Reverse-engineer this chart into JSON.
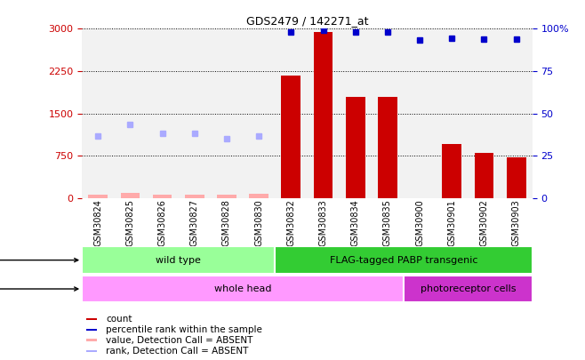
{
  "title": "GDS2479 / 142271_at",
  "samples": [
    "GSM30824",
    "GSM30825",
    "GSM30826",
    "GSM30827",
    "GSM30828",
    "GSM30830",
    "GSM30832",
    "GSM30833",
    "GSM30834",
    "GSM30835",
    "GSM30900",
    "GSM30901",
    "GSM30902",
    "GSM30903"
  ],
  "count_values": [
    null,
    null,
    null,
    null,
    null,
    null,
    2175,
    2950,
    1800,
    1800,
    null,
    950,
    800,
    720
  ],
  "count_absent": [
    65,
    95,
    60,
    60,
    55,
    80,
    null,
    null,
    null,
    null,
    null,
    null,
    null,
    null
  ],
  "rank_values": [
    null,
    null,
    null,
    null,
    null,
    null,
    2950,
    2970,
    2940,
    2940,
    2800,
    2840,
    2820,
    2820
  ],
  "rank_absent": [
    1100,
    1300,
    1150,
    1150,
    1050,
    1100,
    null,
    null,
    null,
    null,
    null,
    null,
    null,
    null
  ],
  "ylim_left": [
    0,
    3000
  ],
  "ylim_right": [
    0,
    100
  ],
  "yticks_left": [
    0,
    750,
    1500,
    2250,
    3000
  ],
  "yticks_right": [
    0,
    25,
    50,
    75,
    100
  ],
  "bar_color": "#cc0000",
  "bar_absent_color": "#ffaaaa",
  "rank_color": "#0000cc",
  "rank_absent_color": "#aaaaff",
  "genotype_groups": [
    {
      "label": "wild type",
      "start": 0,
      "end": 6,
      "color": "#99ff99"
    },
    {
      "label": "FLAG-tagged PABP transgenic",
      "start": 6,
      "end": 14,
      "color": "#33cc33"
    }
  ],
  "tissue_groups": [
    {
      "label": "whole head",
      "start": 0,
      "end": 10,
      "color": "#ff99ff"
    },
    {
      "label": "photoreceptor cells",
      "start": 10,
      "end": 14,
      "color": "#cc33cc"
    }
  ],
  "legend_items": [
    {
      "label": "count",
      "color": "#cc0000"
    },
    {
      "label": "percentile rank within the sample",
      "color": "#0000cc"
    },
    {
      "label": "value, Detection Call = ABSENT",
      "color": "#ffaaaa"
    },
    {
      "label": "rank, Detection Call = ABSENT",
      "color": "#aaaaff"
    }
  ],
  "bg_color": "#ffffff",
  "sample_bg_color": "#cccccc",
  "right_axis_color": "#0000cc",
  "left_axis_color": "#cc0000"
}
